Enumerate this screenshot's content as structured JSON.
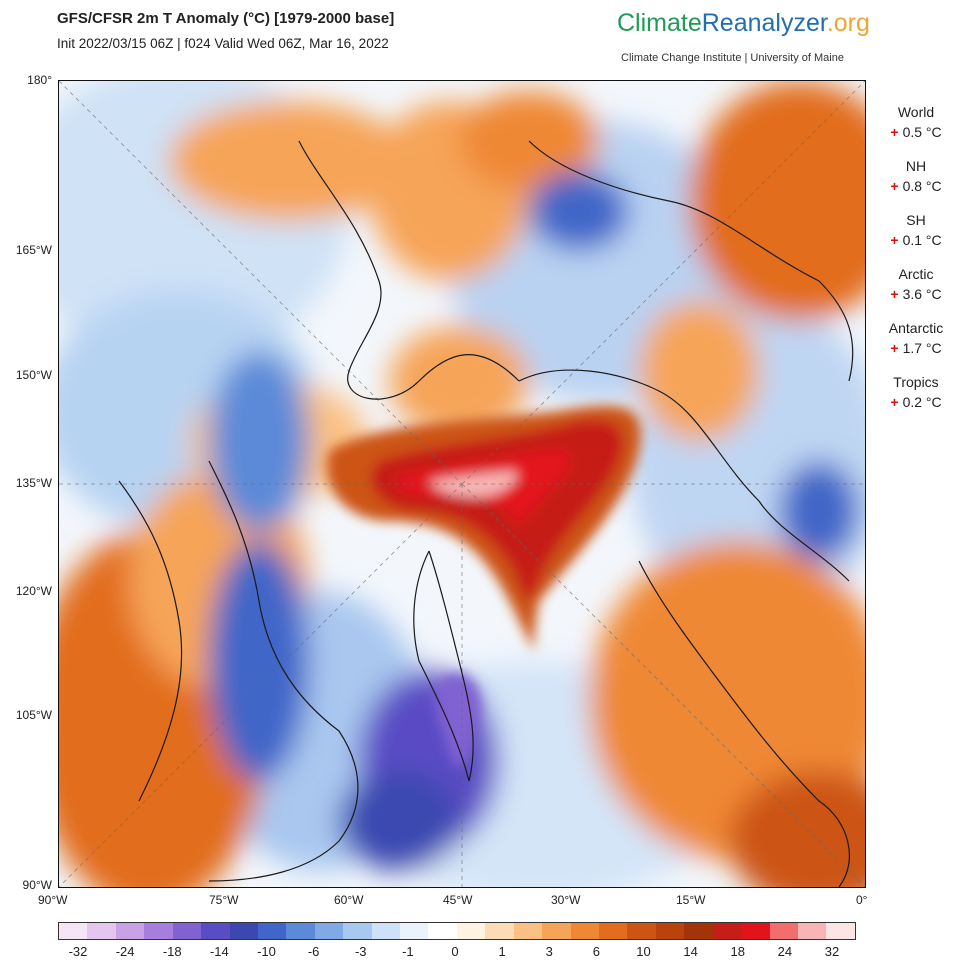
{
  "header": {
    "title": "GFS/CFSR 2m T Anomaly (°C) [1979-2000 base]",
    "subtitle": "Init 2022/03/15 06Z | f024 Valid Wed 06Z, Mar 16, 2022"
  },
  "brand": {
    "part1": "Climate",
    "part2": "Reanalyzer",
    "part3": ".org",
    "tagline": "Climate Change Institute | University of Maine",
    "colors": {
      "green": "#1f9a58",
      "blue": "#1f6fb2",
      "orange": "#f0a530"
    }
  },
  "axes": {
    "lat_labels": [
      "180°",
      "165°W",
      "150°W",
      "135°W",
      "120°W",
      "105°W",
      "90°W"
    ],
    "lon_labels": [
      "90°W",
      "75°W",
      "60°W",
      "45°W",
      "30°W",
      "15°W",
      "0°"
    ]
  },
  "stats": [
    {
      "name": "World",
      "sign": "+",
      "value": "0.5 °C"
    },
    {
      "name": "NH",
      "sign": "+",
      "value": "0.8 °C"
    },
    {
      "name": "SH",
      "sign": "+",
      "value": "0.1 °C"
    },
    {
      "name": "Arctic",
      "sign": "+",
      "value": "3.6 °C"
    },
    {
      "name": "Antarctic",
      "sign": "+",
      "value": "1.7 °C"
    },
    {
      "name": "Tropics",
      "sign": "+",
      "value": "0.2 °C"
    }
  ],
  "colorbar": {
    "labels": [
      "-32",
      "-24",
      "-18",
      "-14",
      "-10",
      "-6",
      "-3",
      "-1",
      "0",
      "1",
      "3",
      "6",
      "10",
      "14",
      "18",
      "24",
      "32"
    ],
    "colors": [
      "#f6e6f5",
      "#e4c6ee",
      "#c9a1e6",
      "#a77ede",
      "#8062d2",
      "#5a4cc4",
      "#3b48b0",
      "#3f66c8",
      "#5b8ad8",
      "#7faae6",
      "#a6c8f1",
      "#cde1f8",
      "#eaf3fc",
      "#ffffff",
      "#fff3e2",
      "#fddbb4",
      "#fbc184",
      "#f6a458",
      "#ef8835",
      "#e26d1f",
      "#cc5514",
      "#b9420d",
      "#a5330a",
      "#c61d16",
      "#e2141a",
      "#f26d6d",
      "#f8b5b5",
      "#fde5e5"
    ]
  }
}
